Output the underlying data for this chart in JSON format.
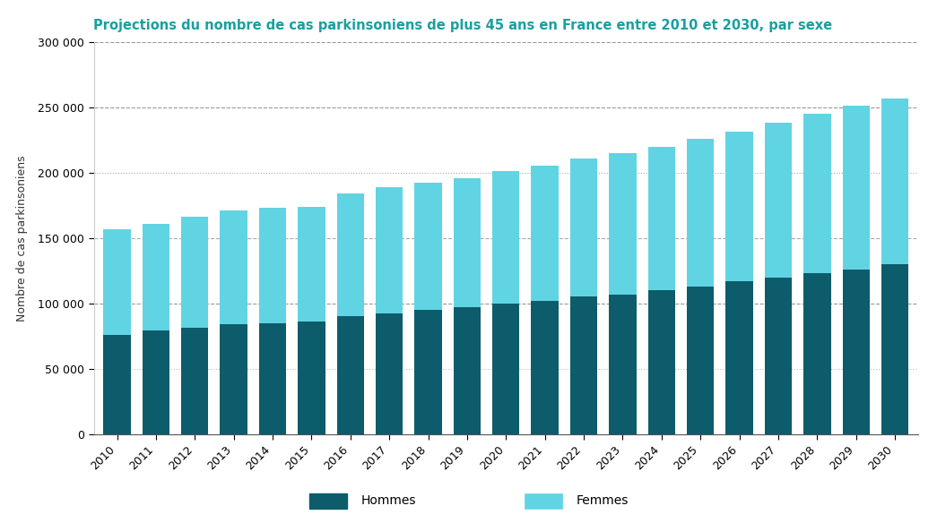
{
  "title": "Projections du nombre de cas parkinsoniens de plus 45 ans en France entre 2010 et 2030, par sexe",
  "ylabel": "Nombre de cas parkinsoniens",
  "years": [
    2010,
    2011,
    2012,
    2013,
    2014,
    2015,
    2016,
    2017,
    2018,
    2019,
    2020,
    2021,
    2022,
    2023,
    2024,
    2025,
    2026,
    2027,
    2028,
    2029,
    2030
  ],
  "hommes": [
    76000,
    79000,
    81000,
    84000,
    85000,
    86000,
    90000,
    92000,
    95000,
    97000,
    100000,
    102000,
    105000,
    107000,
    110000,
    113000,
    117000,
    120000,
    123000,
    126000,
    130000
  ],
  "femmes": [
    81000,
    82000,
    85000,
    87000,
    88000,
    88000,
    94000,
    97000,
    97000,
    99000,
    101000,
    103000,
    106000,
    108000,
    110000,
    113000,
    114000,
    118000,
    122000,
    125000,
    127000
  ],
  "color_hommes": "#0d5c6b",
  "color_femmes": "#61d4e3",
  "title_color": "#1a9fa0",
  "ylabel_color": "#333333",
  "background_color": "#ffffff",
  "legend_bg": "#c8c8c8",
  "ylim": [
    0,
    300000
  ],
  "yticks": [
    0,
    50000,
    100000,
    150000,
    200000,
    250000,
    300000
  ],
  "grid_styles": {
    "50000": {
      "ls": ":",
      "color": "#aaaaaa",
      "lw": 0.9
    },
    "100000": {
      "ls": "--",
      "color": "#888888",
      "lw": 0.9
    },
    "150000": {
      "ls": "--",
      "color": "#888888",
      "lw": 0.9
    },
    "200000": {
      "ls": ":",
      "color": "#888888",
      "lw": 0.9
    },
    "250000": {
      "ls": "--",
      "color": "#888888",
      "lw": 0.9
    },
    "300000": {
      "ls": "--",
      "color": "#888888",
      "lw": 0.9
    }
  },
  "title_fontsize": 10.5,
  "axis_fontsize": 9,
  "tick_fontsize": 9,
  "legend_fontsize": 10
}
